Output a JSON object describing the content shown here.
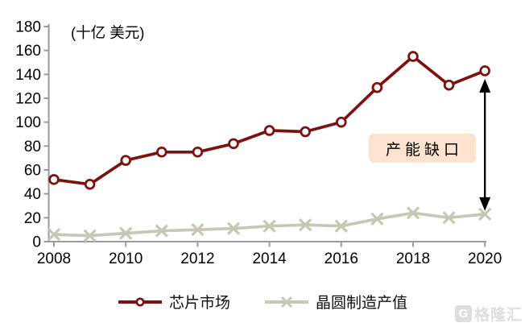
{
  "chart_data": {
    "type": "line",
    "title": "",
    "unit_label": "(十亿 美元)",
    "xlabel": "",
    "ylabel": "",
    "x": [
      2008,
      2009,
      2010,
      2011,
      2012,
      2013,
      2014,
      2015,
      2016,
      2017,
      2018,
      2019,
      2020
    ],
    "xticks": [
      2008,
      2010,
      2012,
      2014,
      2016,
      2018,
      2020
    ],
    "ylim": [
      0,
      180
    ],
    "ytick_step": 20,
    "grid": false,
    "legend_position": "bottom",
    "series": [
      {
        "name": "芯片市场",
        "marker": "circle",
        "color": "#7d1110",
        "values": [
          52,
          48,
          68,
          75,
          75,
          82,
          93,
          92,
          100,
          129,
          155,
          131,
          143
        ]
      },
      {
        "name": "晶圆制造产值",
        "marker": "x",
        "color": "#c8c6b4",
        "values": [
          6,
          5,
          7,
          9,
          10,
          11,
          13,
          14,
          13,
          19,
          24,
          20,
          23
        ]
      }
    ],
    "annotation": {
      "label": "产能缺口",
      "bg_color": "#fbe3d0",
      "arrow": "double-headed vertical arrow at 2020 spanning gap between the two series",
      "arrow_color": "#000000"
    },
    "axis_color": "#9b9b9b"
  },
  "watermark": {
    "text": "格隆汇",
    "logo_letter": "G"
  }
}
